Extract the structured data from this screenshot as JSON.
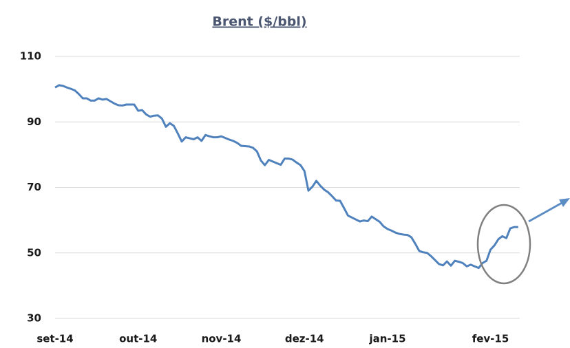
{
  "chart_data": {
    "type": "line",
    "title": "Brent ($/bbl)",
    "categories": [
      "set-14",
      null,
      null,
      null,
      null,
      null,
      null,
      null,
      null,
      null,
      null,
      null,
      null,
      null,
      null,
      null,
      null,
      null,
      null,
      null,
      null,
      "out-14",
      null,
      null,
      null,
      null,
      null,
      null,
      null,
      null,
      null,
      null,
      null,
      null,
      null,
      null,
      null,
      null,
      null,
      null,
      null,
      null,
      "nov-14",
      null,
      null,
      null,
      null,
      null,
      null,
      null,
      null,
      null,
      null,
      null,
      null,
      null,
      null,
      null,
      null,
      null,
      null,
      null,
      null,
      "dez-14",
      null,
      null,
      null,
      null,
      null,
      null,
      null,
      null,
      null,
      null,
      null,
      null,
      null,
      null,
      null,
      null,
      null,
      null,
      null,
      null,
      "jan-15",
      null,
      null,
      null,
      null,
      null,
      null,
      null,
      null,
      null,
      null,
      null,
      null,
      null,
      null,
      null,
      null,
      null,
      null,
      null,
      null,
      null,
      null,
      null,
      null,
      null,
      "fev-15",
      null,
      null,
      null,
      null,
      null,
      null,
      null
    ],
    "series": [
      {
        "name": "Brent",
        "color": "#4f81bd",
        "values": [
          100.5,
          101.2,
          101,
          100.5,
          100.1,
          99.6,
          98.5,
          97.2,
          97.2,
          96.5,
          96.5,
          97.2,
          96.8,
          97,
          96.3,
          95.6,
          95.1,
          95,
          95.3,
          95.3,
          95.3,
          93.4,
          93.6,
          92.3,
          91.6,
          91.9,
          92,
          91,
          88.5,
          89.6,
          88.8,
          86.5,
          84,
          85.3,
          85,
          84.7,
          85.3,
          84.2,
          86,
          85.6,
          85.3,
          85.3,
          85.6,
          85.1,
          84.6,
          84.2,
          83.6,
          82.7,
          82.6,
          82.5,
          82.1,
          81,
          78.2,
          76.8,
          78.4,
          77.9,
          77.4,
          76.9,
          78.8,
          78.8,
          78.5,
          77.6,
          76.8,
          75,
          69,
          70.2,
          72,
          70.5,
          69.3,
          68.5,
          67.3,
          66,
          65.9,
          63.7,
          61.4,
          60.8,
          60.2,
          59.6,
          59.9,
          59.7,
          61.1,
          60.3,
          59.5,
          58.1,
          57.3,
          56.8,
          56.2,
          55.8,
          55.6,
          55.5,
          54.8,
          52.8,
          50.6,
          50.2,
          50,
          49,
          47.8,
          46.6,
          46.2,
          47.4,
          46.1,
          47.6,
          47.3,
          46.9,
          45.9,
          46.4,
          45.9,
          45.4,
          46.9,
          47.6,
          51,
          52.3,
          54.2,
          55.1,
          54.5,
          57.5,
          57.9,
          57.9
        ]
      }
    ],
    "ylim": [
      30,
      110
    ],
    "yticks": [
      30,
      50,
      70,
      90,
      110
    ],
    "grid": true
  }
}
